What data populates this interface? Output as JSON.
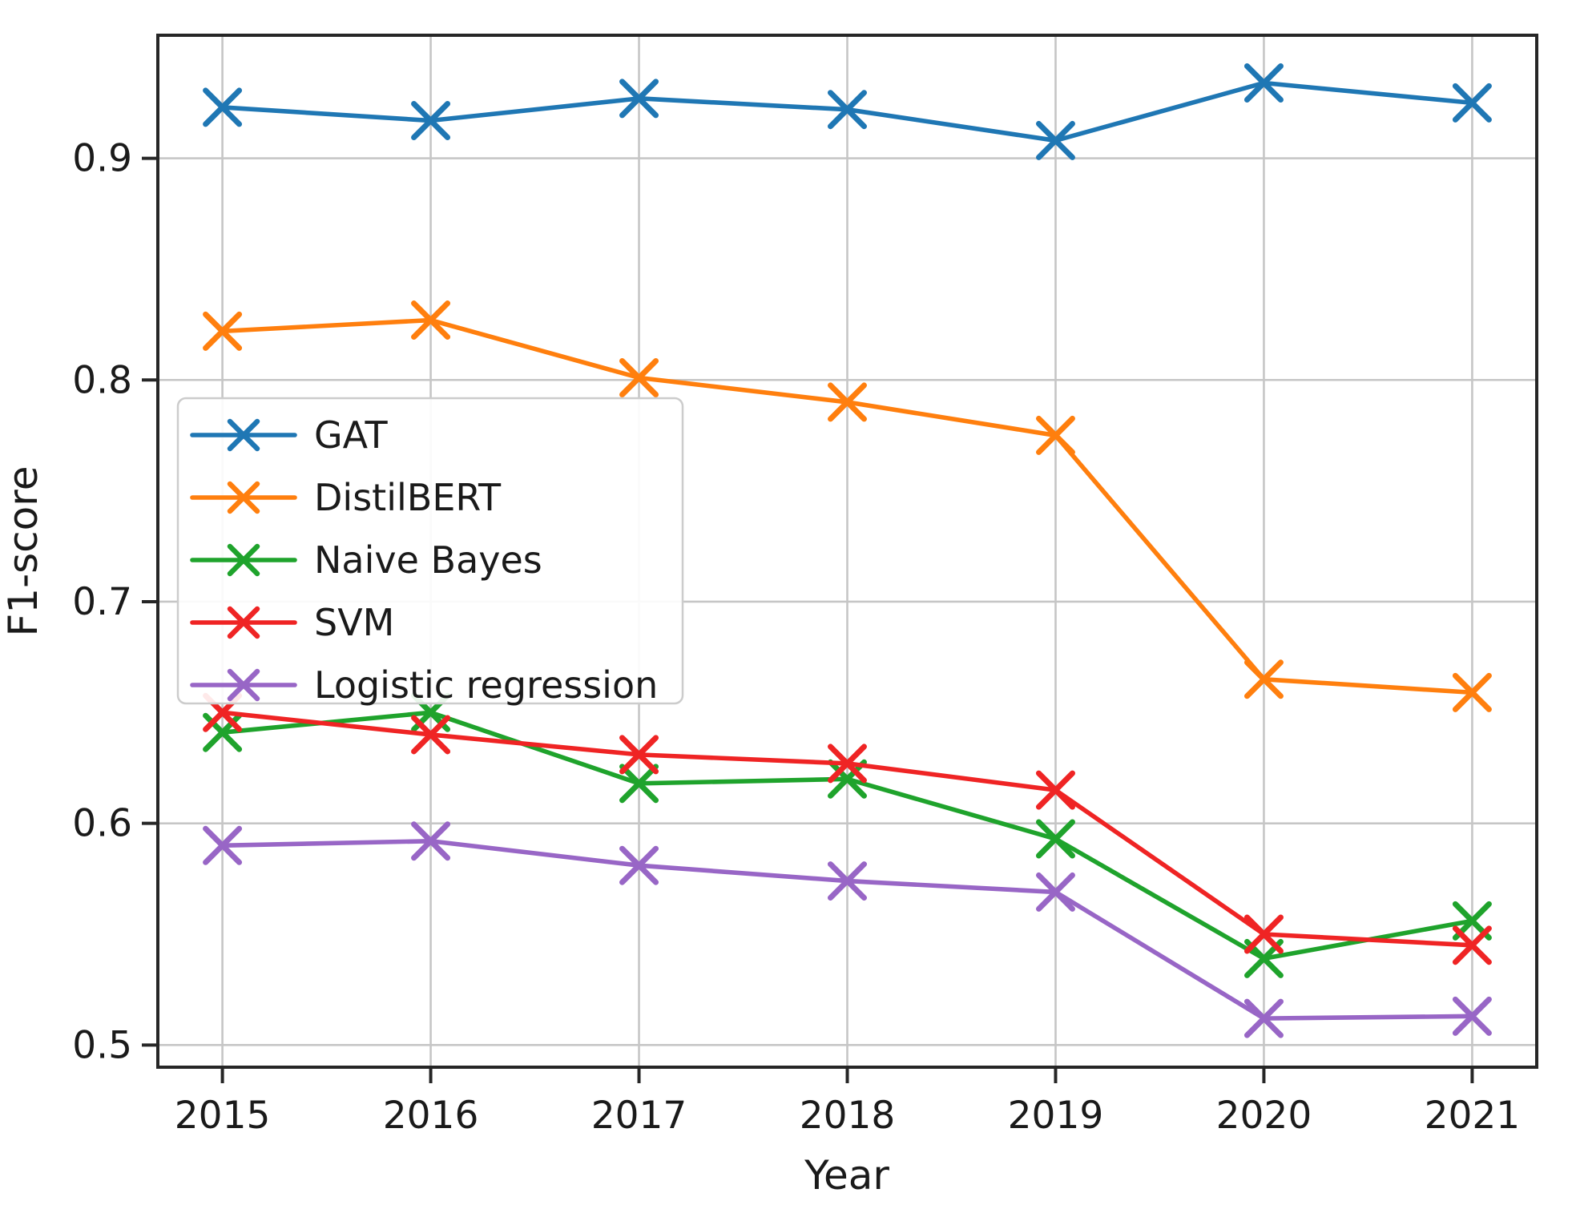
{
  "figure": {
    "background": "#ffffff",
    "grid_color": "#c6c6c6",
    "spine_color": "#262626",
    "text_color": "#1a1a1a",
    "legend_border_color": "#cccccc",
    "legend_background": "#ffffff"
  },
  "chart_data": {
    "type": "line",
    "title": "",
    "xlabel": "Year",
    "ylabel": "F1-score",
    "x": [
      2015,
      2016,
      2017,
      2018,
      2019,
      2020,
      2021
    ],
    "xtick_labels": [
      "2015",
      "2016",
      "2017",
      "2018",
      "2019",
      "2020",
      "2021"
    ],
    "yticks": [
      0.5,
      0.6,
      0.7,
      0.8,
      0.9
    ],
    "ytick_labels": [
      "0.5",
      "0.6",
      "0.7",
      "0.8",
      "0.9"
    ],
    "xlim": [
      2014.69,
      2021.31
    ],
    "ylim": [
      0.49,
      0.9555
    ],
    "grid": true,
    "marker": "x",
    "legend_position": "center left",
    "series": [
      {
        "name": "GAT",
        "color": "#1f77b4",
        "values": [
          0.923,
          0.917,
          0.927,
          0.922,
          0.908,
          0.934,
          0.925
        ]
      },
      {
        "name": "DistilBERT",
        "color": "#ff7f0e",
        "values": [
          0.822,
          0.827,
          0.801,
          0.79,
          0.775,
          0.665,
          0.659
        ]
      },
      {
        "name": "Naive Bayes",
        "color": "#1fa32c",
        "values": [
          0.641,
          0.65,
          0.618,
          0.62,
          0.593,
          0.539,
          0.556
        ]
      },
      {
        "name": "SVM",
        "color": "#ef2424",
        "values": [
          0.65,
          0.64,
          0.631,
          0.627,
          0.615,
          0.55,
          0.545
        ]
      },
      {
        "name": "Logistic regression",
        "color": "#9866c6",
        "values": [
          0.59,
          0.592,
          0.581,
          0.574,
          0.569,
          0.512,
          0.513
        ]
      }
    ]
  }
}
